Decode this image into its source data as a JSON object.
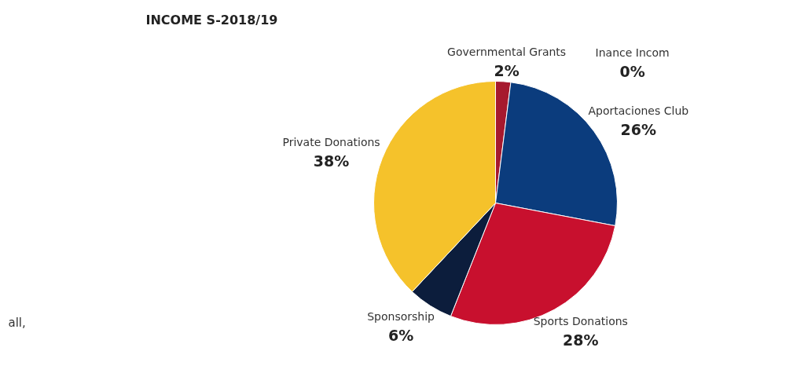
{
  "chart_data": {
    "type": "pie",
    "title": "INCOME S-2018/19",
    "categories": [
      "Governmental Grants",
      "Inance Incom",
      "Aportaciones Club",
      "Sports Donations",
      "Sponsorship",
      "Private Donations"
    ],
    "values": [
      2,
      0,
      26,
      28,
      6,
      38
    ],
    "colors": [
      "#a6192e",
      "#c9d3dc",
      "#0b3c7d",
      "#c8102e",
      "#0c1d3c",
      "#f5c22b"
    ],
    "value_labels": [
      "2%",
      "0%",
      "26%",
      "28%",
      "6%",
      "38%"
    ],
    "annotations": [
      "all,"
    ]
  }
}
